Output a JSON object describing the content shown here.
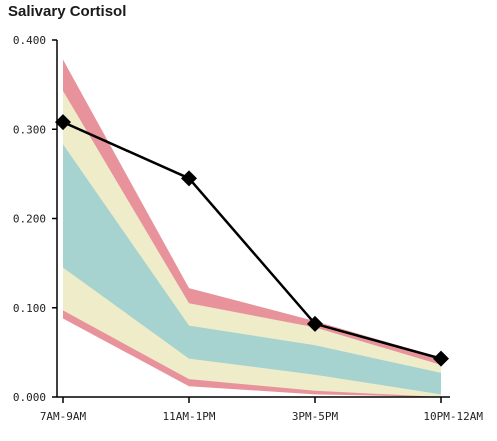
{
  "chart_data": {
    "type": "line",
    "title": "Salivary Cortisol",
    "xlabel": "",
    "ylabel": "",
    "categories": [
      "7AM-9AM",
      "11AM-1PM",
      "3PM-5PM",
      "10PM-12AM"
    ],
    "ylim": [
      0,
      0.4
    ],
    "yticks": [
      "0.000",
      "0.100",
      "0.200",
      "0.300",
      "0.400"
    ],
    "grid": false,
    "legend": "none",
    "series": [
      {
        "values": [
          0.308,
          0.245,
          0.082,
          0.043
        ]
      }
    ],
    "bands": [
      {
        "color": "#e8939b",
        "lower": [
          0.088,
          0.012,
          0.003,
          0.0
        ],
        "upper": [
          0.378,
          0.122,
          0.085,
          0.044
        ]
      },
      {
        "color": "#eeecc9",
        "lower": [
          0.097,
          0.02,
          0.007,
          0.0
        ],
        "upper": [
          0.343,
          0.105,
          0.078,
          0.036
        ]
      },
      {
        "color": "#a6d2d0",
        "lower": [
          0.145,
          0.043,
          0.025,
          0.003
        ],
        "upper": [
          0.283,
          0.08,
          0.058,
          0.027
        ]
      }
    ],
    "colors": {
      "line": "#000000",
      "axis": "#000000"
    }
  }
}
